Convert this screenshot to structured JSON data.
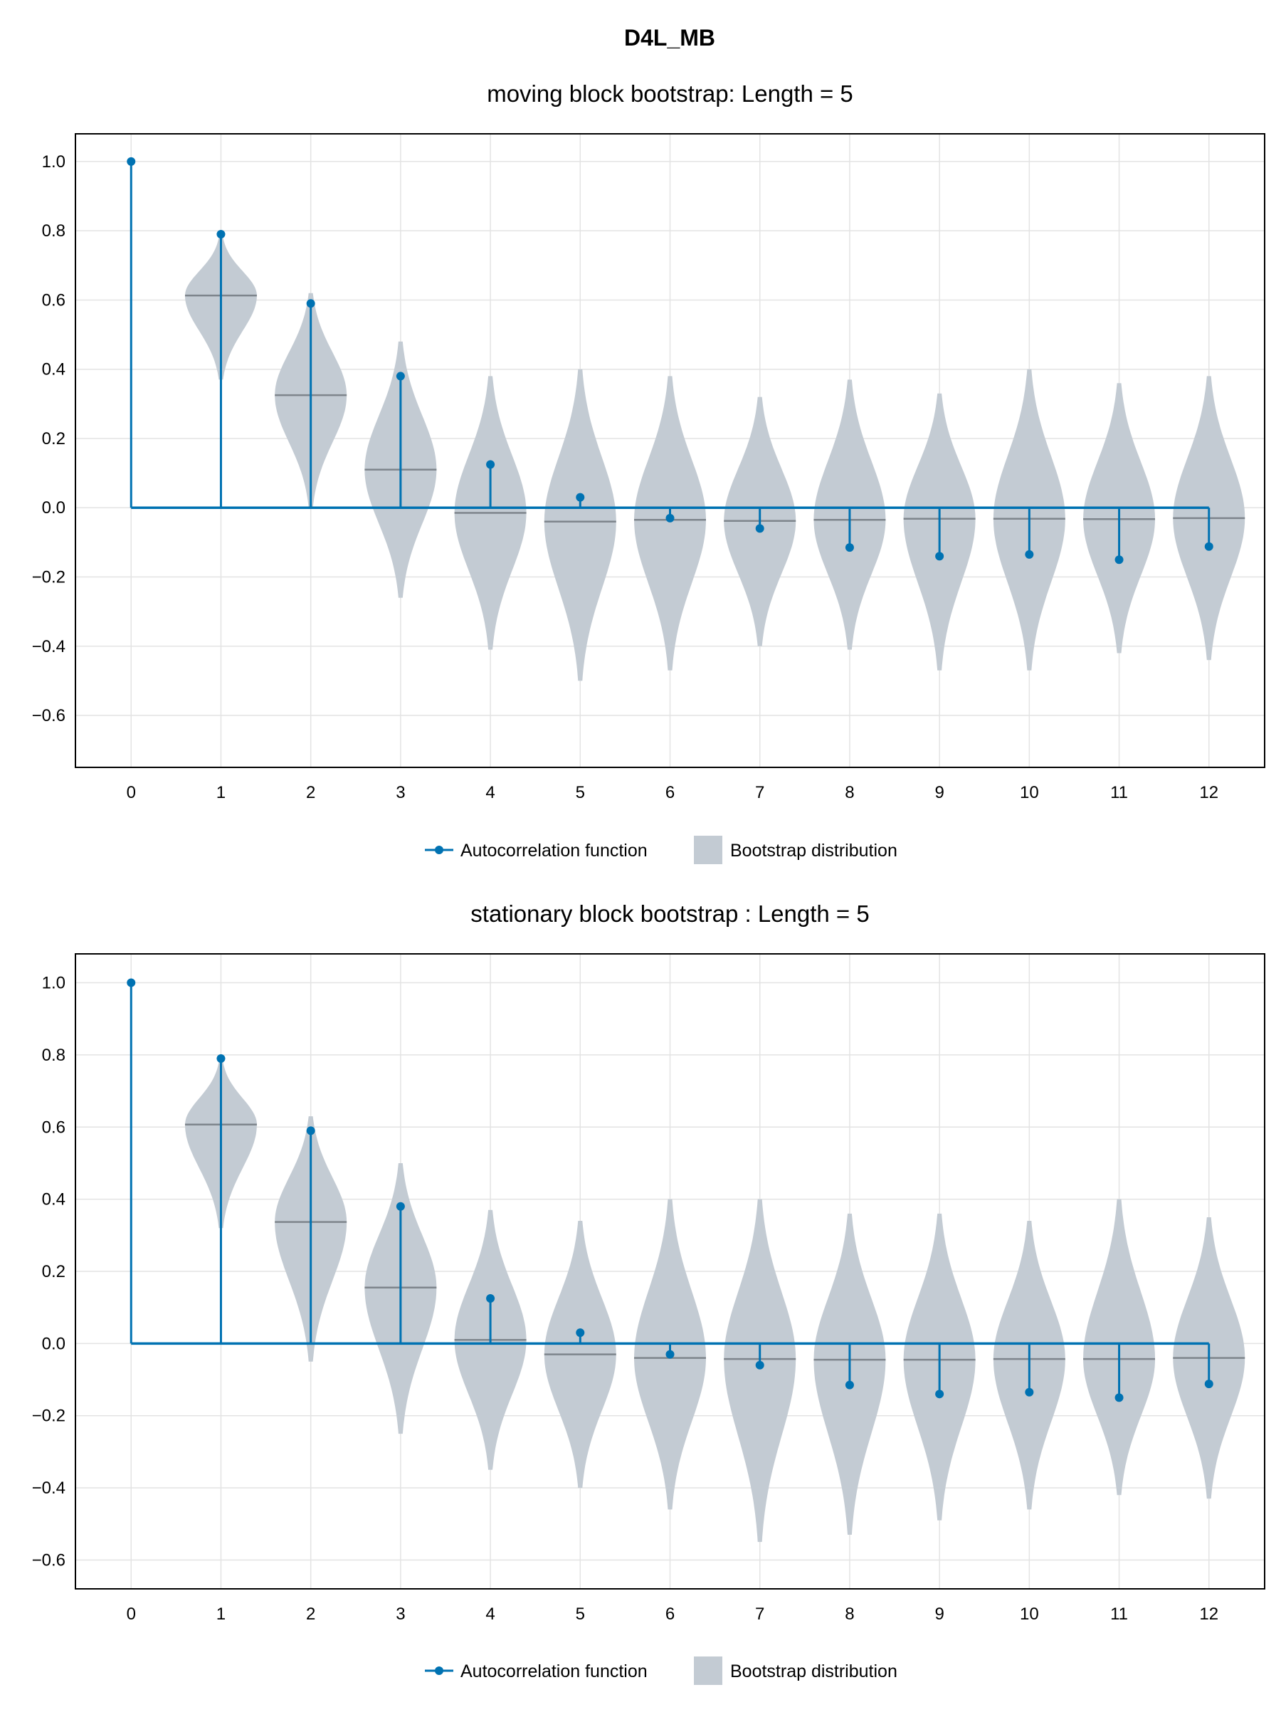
{
  "figure_title": "D4L_MB",
  "colors": {
    "acf": "#0072b2",
    "violin": "#c3cbd3",
    "median": "#7e858c",
    "grid": "#e3e3e3"
  },
  "legend": {
    "acf_label": "Autocorrelation function",
    "bootstrap_label": "Bootstrap distribution",
    "placement": "bottom-center"
  },
  "chart_data": [
    {
      "type": "stem+violin",
      "title": "moving block bootstrap: Length = 5",
      "xlabel": "",
      "ylabel": "",
      "x": [
        0,
        1,
        2,
        3,
        4,
        5,
        6,
        7,
        8,
        9,
        10,
        11,
        12
      ],
      "ylim": [
        -0.75,
        1.08
      ],
      "yticks": [
        -0.6,
        -0.4,
        -0.2,
        0.0,
        0.2,
        0.4,
        0.6,
        0.8,
        1.0
      ],
      "grid": true,
      "series": [
        {
          "name": "Autocorrelation function",
          "values": [
            1.0,
            0.79,
            0.59,
            0.38,
            0.125,
            0.03,
            -0.03,
            -0.06,
            -0.115,
            -0.14,
            -0.135,
            -0.15,
            -0.112
          ]
        },
        {
          "name": "Bootstrap distribution",
          "lags": [
            1,
            2,
            3,
            4,
            5,
            6,
            7,
            8,
            9,
            10,
            11,
            12
          ],
          "median": [
            0.613,
            0.325,
            0.11,
            -0.015,
            -0.04,
            -0.035,
            -0.038,
            -0.035,
            -0.032,
            -0.032,
            -0.033,
            -0.03
          ],
          "min": [
            0.37,
            0.0,
            -0.26,
            -0.41,
            -0.5,
            -0.47,
            -0.4,
            -0.41,
            -0.47,
            -0.47,
            -0.42,
            -0.44
          ],
          "max": [
            0.78,
            0.62,
            0.48,
            0.38,
            0.4,
            0.38,
            0.32,
            0.37,
            0.33,
            0.4,
            0.36,
            0.38
          ]
        }
      ]
    },
    {
      "type": "stem+violin",
      "title": "stationary block bootstrap : Length = 5",
      "xlabel": "",
      "ylabel": "",
      "x": [
        0,
        1,
        2,
        3,
        4,
        5,
        6,
        7,
        8,
        9,
        10,
        11,
        12
      ],
      "ylim": [
        -0.68,
        1.08
      ],
      "yticks": [
        -0.6,
        -0.4,
        -0.2,
        0.0,
        0.2,
        0.4,
        0.6,
        0.8,
        1.0
      ],
      "grid": true,
      "series": [
        {
          "name": "Autocorrelation function",
          "values": [
            1.0,
            0.79,
            0.59,
            0.38,
            0.125,
            0.03,
            -0.03,
            -0.06,
            -0.115,
            -0.14,
            -0.135,
            -0.15,
            -0.112
          ]
        },
        {
          "name": "Bootstrap distribution",
          "lags": [
            1,
            2,
            3,
            4,
            5,
            6,
            7,
            8,
            9,
            10,
            11,
            12
          ],
          "median": [
            0.607,
            0.337,
            0.155,
            0.01,
            -0.03,
            -0.04,
            -0.043,
            -0.045,
            -0.045,
            -0.043,
            -0.043,
            -0.04
          ],
          "min": [
            0.32,
            -0.05,
            -0.25,
            -0.35,
            -0.4,
            -0.46,
            -0.55,
            -0.53,
            -0.49,
            -0.46,
            -0.42,
            -0.43
          ],
          "max": [
            0.78,
            0.63,
            0.5,
            0.37,
            0.34,
            0.4,
            0.4,
            0.36,
            0.36,
            0.34,
            0.4,
            0.35
          ]
        }
      ]
    }
  ]
}
